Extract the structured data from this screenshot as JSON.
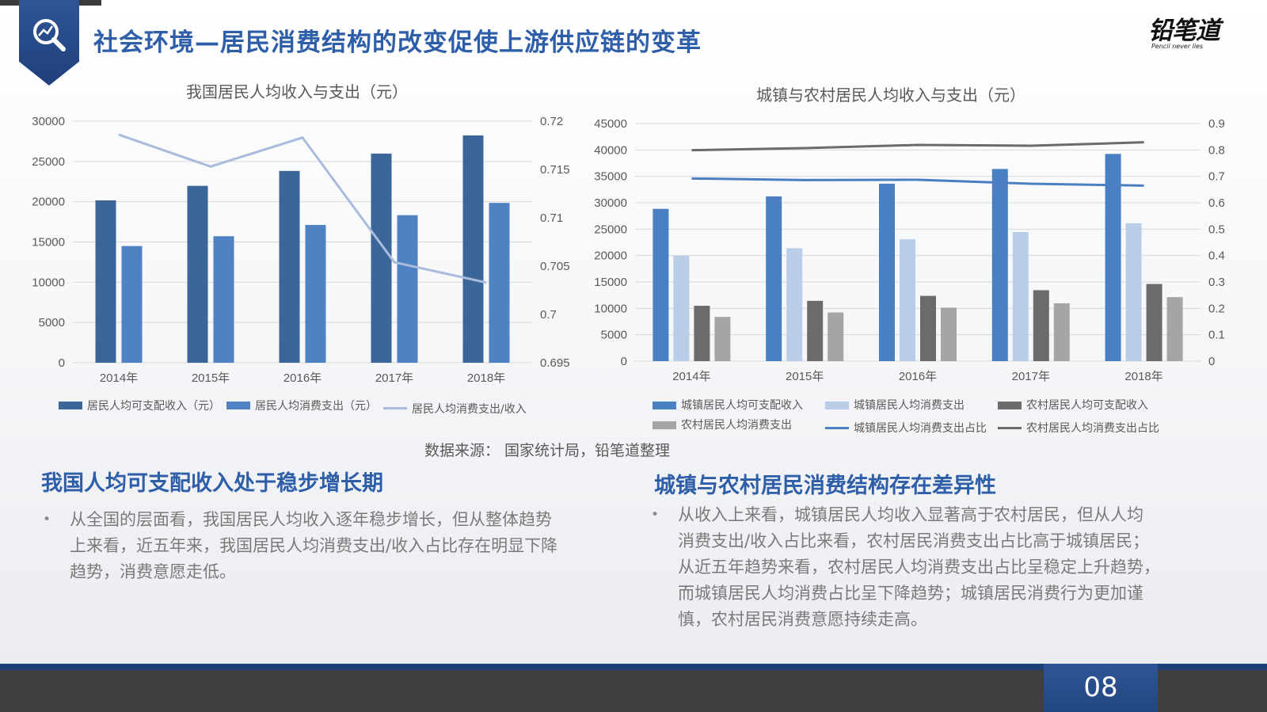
{
  "header": {
    "title": "社会环境—居民消费结构的改变促使上游供应链的变革",
    "logo_text": "铅笔道",
    "logo_sub": "Pencil never lies",
    "icon": "magnifier-chart-icon"
  },
  "colors": {
    "accent": "#2e5ea8",
    "badge": "#2f5597",
    "footer": "#3f3f3f"
  },
  "chart_data": [
    {
      "type": "bar",
      "title": "我国居民人均收入与支出（元）",
      "categories": [
        "2014年",
        "2015年",
        "2016年",
        "2017年",
        "2018年"
      ],
      "ylim": [
        0,
        30000
      ],
      "yticks": [
        "0",
        "5000",
        "10000",
        "15000",
        "20000",
        "25000",
        "30000"
      ],
      "y2lim": [
        0.695,
        0.72
      ],
      "y2ticks": [
        "0.695",
        "0.7",
        "0.705",
        "0.71",
        "0.715",
        "0.72"
      ],
      "grid": true,
      "legend_position": "bottom",
      "series": [
        {
          "name": "居民人均可支配收入（元）",
          "kind": "bar",
          "axis": "left",
          "color": "#3a6699",
          "values": [
            20167,
            21966,
            23821,
            25974,
            28228
          ]
        },
        {
          "name": "居民人均消费支出（元）",
          "kind": "bar",
          "axis": "left",
          "color": "#4f82c3",
          "values": [
            14491,
            15712,
            17111,
            18322,
            19853
          ]
        },
        {
          "name": "居民人均消费支出/收入",
          "kind": "line",
          "axis": "right",
          "color": "#a9bcdc",
          "values": [
            0.7186,
            0.7153,
            0.7183,
            0.7054,
            0.7033
          ]
        }
      ]
    },
    {
      "type": "bar",
      "title": "城镇与农村居民人均收入与支出（元）",
      "categories": [
        "2014年",
        "2015年",
        "2016年",
        "2017年",
        "2018年"
      ],
      "ylim": [
        0,
        45000
      ],
      "yticks": [
        "0",
        "5000",
        "10000",
        "15000",
        "20000",
        "25000",
        "30000",
        "35000",
        "40000",
        "45000"
      ],
      "y2lim": [
        0,
        0.9
      ],
      "y2ticks": [
        "0",
        "0.1",
        "0.2",
        "0.3",
        "0.4",
        "0.5",
        "0.6",
        "0.7",
        "0.8",
        "0.9"
      ],
      "grid": true,
      "legend_position": "bottom",
      "series": [
        {
          "name": "城镇居民人均可支配收入",
          "kind": "bar",
          "axis": "left",
          "color": "#4a7fc1",
          "values": [
            28844,
            31195,
            33616,
            36396,
            39251
          ]
        },
        {
          "name": "城镇居民人均消费支出",
          "kind": "bar",
          "axis": "left",
          "color": "#b9cde7",
          "values": [
            19968,
            21392,
            23079,
            24445,
            26112
          ]
        },
        {
          "name": "农村居民人均可支配收入",
          "kind": "bar",
          "axis": "left",
          "color": "#6b6b6b",
          "values": [
            10489,
            11422,
            12363,
            13432,
            14617
          ]
        },
        {
          "name": "农村居民人均消费支出",
          "kind": "bar",
          "axis": "left",
          "color": "#a5a5a5",
          "values": [
            8383,
            9223,
            10130,
            10955,
            12124
          ]
        },
        {
          "name": "城镇居民人均消费支出占比",
          "kind": "line",
          "axis": "right",
          "color": "#4a7fc1",
          "values": [
            0.692,
            0.686,
            0.687,
            0.672,
            0.665
          ]
        },
        {
          "name": "农村居民人均消费支出占比",
          "kind": "line",
          "axis": "right",
          "color": "#6b6b6b",
          "values": [
            0.799,
            0.807,
            0.819,
            0.816,
            0.829
          ]
        }
      ]
    }
  ],
  "source": "数据来源： 国家统计局，铅笔道整理",
  "left_section": {
    "heading": "我国人均可支配收入处于稳步增长期",
    "bullet_lines": [
      "从全国的层面看，我国居民人均收入逐年稳步增长，但从整体趋势",
      "上来看，近五年来，我国居民人均消费支出/收入占比存在明显下降",
      "趋势，消费意愿走低。"
    ]
  },
  "right_section": {
    "heading": "城镇与农村居民消费结构存在差异性",
    "bullet_lines": [
      "从收入上来看，城镇居民人均收入显著高于农村居民，但从人均",
      "消费支出/收入占比来看，农村居民消费支出占比高于城镇居民；",
      "从近五年趋势来看，农村居民人均消费支出占比呈稳定上升趋势，",
      "而城镇居民人均消费占比呈下降趋势；城镇居民消费行为更加谨",
      "慎，农村居民消费意愿持续走高。"
    ]
  },
  "footer": {
    "page_number": "08"
  }
}
